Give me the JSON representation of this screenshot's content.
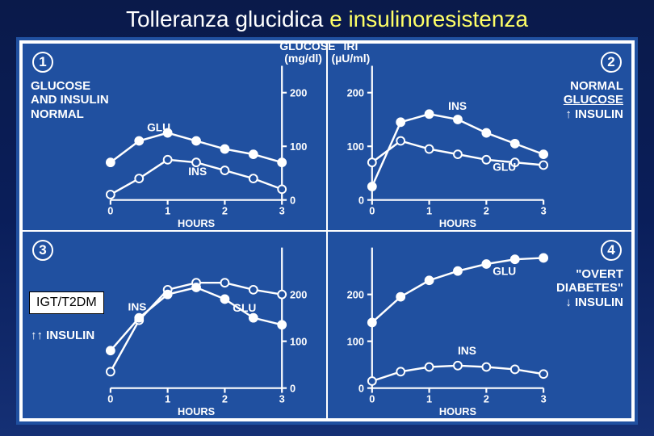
{
  "title_parts": [
    "Tolleranza glucidica ",
    "e insulinoresistenza"
  ],
  "center_top": {
    "left_label": "GLUCOSE",
    "left_unit": "(mg/dl)",
    "right_label": "IRI",
    "right_unit": "(µU/ml)"
  },
  "colors": {
    "bg_panel": "#2050a0",
    "line": "#ffffff",
    "marker_fill_glu": "#ffffff",
    "marker_fill_ins": "#2050a0",
    "marker_stroke": "#ffffff",
    "axis": "#ffffff",
    "text": "#ffffff"
  },
  "style": {
    "line_width": 2.5,
    "marker_r_filled": 5,
    "marker_r_open": 5,
    "axis_width": 2.2,
    "tick_len": 6,
    "font_axis": 13,
    "font_series": 14,
    "font_subtitle": 15,
    "font_num": 17
  },
  "axes": {
    "x": {
      "lim": [
        0,
        3
      ],
      "ticks": [
        0,
        1,
        2,
        3
      ],
      "label": "HOURS"
    },
    "y_top": {
      "lim": [
        0,
        250
      ],
      "ticks": [
        0,
        100,
        200
      ]
    },
    "y_bot": {
      "lim": [
        0,
        300
      ],
      "ticks": [
        0,
        100,
        200
      ]
    }
  },
  "panels": [
    {
      "id": 1,
      "num_pos": "tl",
      "subtitle_lines": [
        "GLUCOSE",
        "AND INSULIN",
        "NORMAL"
      ],
      "subtitle_pos": "left",
      "series": [
        {
          "name": "GLU",
          "filled": true,
          "x": [
            0,
            0.5,
            1,
            1.5,
            2,
            2.5,
            3
          ],
          "y": [
            70,
            110,
            125,
            110,
            95,
            85,
            70
          ],
          "label_at": 1,
          "label_offset": [
            10,
            -12
          ]
        },
        {
          "name": "INS",
          "filled": false,
          "x": [
            0,
            0.5,
            1,
            1.5,
            2,
            2.5,
            3
          ],
          "y": [
            10,
            40,
            75,
            70,
            55,
            40,
            20
          ],
          "label_at": 3,
          "label_offset": [
            -10,
            16
          ]
        }
      ],
      "y_axis_side": "right"
    },
    {
      "id": 2,
      "num_pos": "tr",
      "subtitle_lines": [
        "NORMAL",
        "<u>GLUCOSE</u>",
        "↑ INSULIN"
      ],
      "subtitle_pos": "right",
      "series": [
        {
          "name": "INS",
          "filled": true,
          "x": [
            0,
            0.5,
            1,
            1.5,
            2,
            2.5,
            3
          ],
          "y": [
            25,
            145,
            160,
            150,
            125,
            105,
            85
          ],
          "label_at": 3,
          "label_offset": [
            -12,
            -12
          ]
        },
        {
          "name": "GLU",
          "filled": false,
          "x": [
            0,
            0.5,
            1,
            1.5,
            2,
            2.5,
            3
          ],
          "y": [
            70,
            110,
            95,
            85,
            75,
            70,
            65
          ],
          "label_at": 4,
          "label_offset": [
            8,
            14
          ]
        }
      ],
      "y_axis_side": "left"
    },
    {
      "id": 3,
      "num_pos": "tl",
      "subtitle_lines": [
        "↑↑ INSULIN"
      ],
      "subtitle_pos": "left-bottom",
      "box_label": "IGT/T2DM",
      "series": [
        {
          "name": "INS",
          "filled": false,
          "x": [
            0,
            0.5,
            1,
            1.5,
            2,
            2.5,
            3
          ],
          "y": [
            35,
            145,
            210,
            225,
            225,
            210,
            200
          ],
          "label_at": 1,
          "label_offset": [
            -14,
            -12
          ]
        },
        {
          "name": "GLU",
          "filled": true,
          "x": [
            0,
            0.5,
            1,
            1.5,
            2,
            2.5,
            3
          ],
          "y": [
            80,
            150,
            200,
            215,
            190,
            150,
            135
          ],
          "label_at": 4,
          "label_offset": [
            10,
            16
          ]
        }
      ],
      "y_axis_side": "right"
    },
    {
      "id": 4,
      "num_pos": "tr",
      "subtitle_lines": [
        "\"OVERT",
        "DIABETES\"",
        "↓ INSULIN"
      ],
      "subtitle_pos": "right",
      "series": [
        {
          "name": "GLU",
          "filled": true,
          "x": [
            0,
            0.5,
            1,
            1.5,
            2,
            2.5,
            3
          ],
          "y": [
            140,
            195,
            230,
            250,
            265,
            275,
            278
          ],
          "label_at": 4,
          "label_offset": [
            8,
            14
          ]
        },
        {
          "name": "INS",
          "filled": false,
          "x": [
            0,
            0.5,
            1,
            1.5,
            2,
            2.5,
            3
          ],
          "y": [
            15,
            35,
            45,
            48,
            45,
            40,
            30
          ],
          "label_at": 3,
          "label_offset": [
            0,
            -14
          ]
        }
      ],
      "y_axis_side": "left"
    }
  ]
}
